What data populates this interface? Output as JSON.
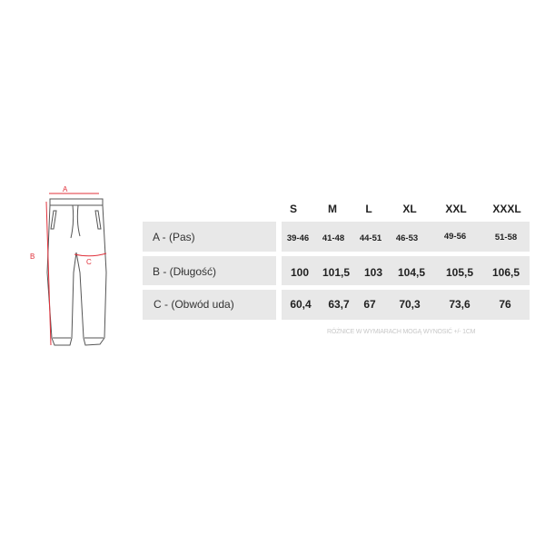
{
  "diagram": {
    "labels": {
      "a": "A",
      "b": "B",
      "c": "C"
    },
    "accent_color": "#e0303a"
  },
  "table": {
    "sizes": [
      "S",
      "M",
      "L",
      "XL",
      "XXL",
      "XXXL"
    ],
    "rows": [
      {
        "label": "A - (Pas)",
        "values": [
          "39-46",
          "41-48",
          "44-51",
          "46-53",
          "49-56",
          "51-58"
        ]
      },
      {
        "label": "B - (Długość)",
        "values": [
          "100",
          "101,5",
          "103",
          "104,5",
          "105,5",
          "106,5"
        ]
      },
      {
        "label": "C - (Obwód uda)",
        "values": [
          "60,4",
          "63,7",
          "67",
          "70,3",
          "73,6",
          "76"
        ]
      }
    ]
  },
  "note": "RÓŻNICE W WYMIARACH MOGĄ WYNOSIĆ +/- 1CM"
}
